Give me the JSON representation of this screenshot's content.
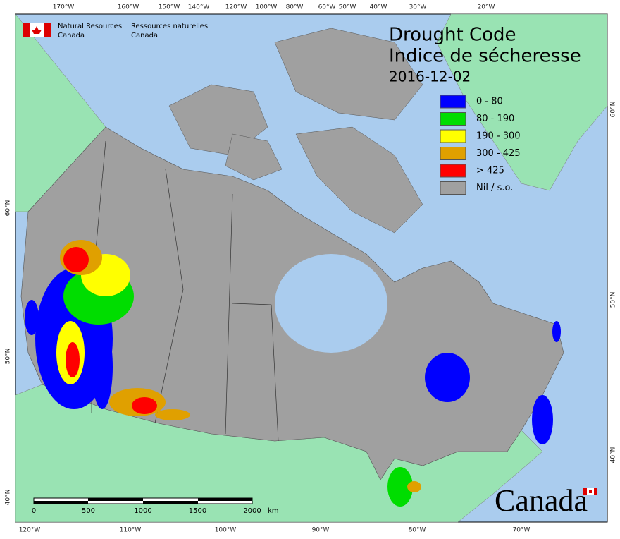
{
  "header": {
    "agency_en": [
      "Natural Resources",
      "Canada"
    ],
    "agency_fr": [
      "Ressources naturelles",
      "Canada"
    ]
  },
  "title": [
    "Drought Code",
    "Indice de sécheresse"
  ],
  "date": "2016-12-02",
  "legend": [
    {
      "label": "0 - 80",
      "color": "#0000ff"
    },
    {
      "label": "80 - 190",
      "color": "#00dd00"
    },
    {
      "label": "190 - 300",
      "color": "#ffff00"
    },
    {
      "label": "300 - 425",
      "color": "#e0a000"
    },
    {
      "label": "> 425",
      "color": "#ff0000"
    },
    {
      "label": "Nil / s.o.",
      "color": "#a0a0a0"
    }
  ],
  "graticule": {
    "top": [
      "170°W",
      "160°W",
      "150°W",
      "140°W",
      "120°W",
      "100°W",
      "80°W",
      "60°W",
      "50°W",
      "40°W",
      "30°W",
      "20°W"
    ],
    "bottom": [
      "120°W",
      "110°W",
      "100°W",
      "90°W",
      "80°W",
      "70°W"
    ],
    "left": [
      "60°N",
      "50°N",
      "40°N"
    ],
    "right": [
      "60°N",
      "50°N",
      "40°N"
    ]
  },
  "scale_bar": {
    "ticks": [
      "0",
      "500",
      "1000",
      "1500",
      "2000"
    ],
    "unit": "km"
  },
  "wordmark": "Canada"
}
